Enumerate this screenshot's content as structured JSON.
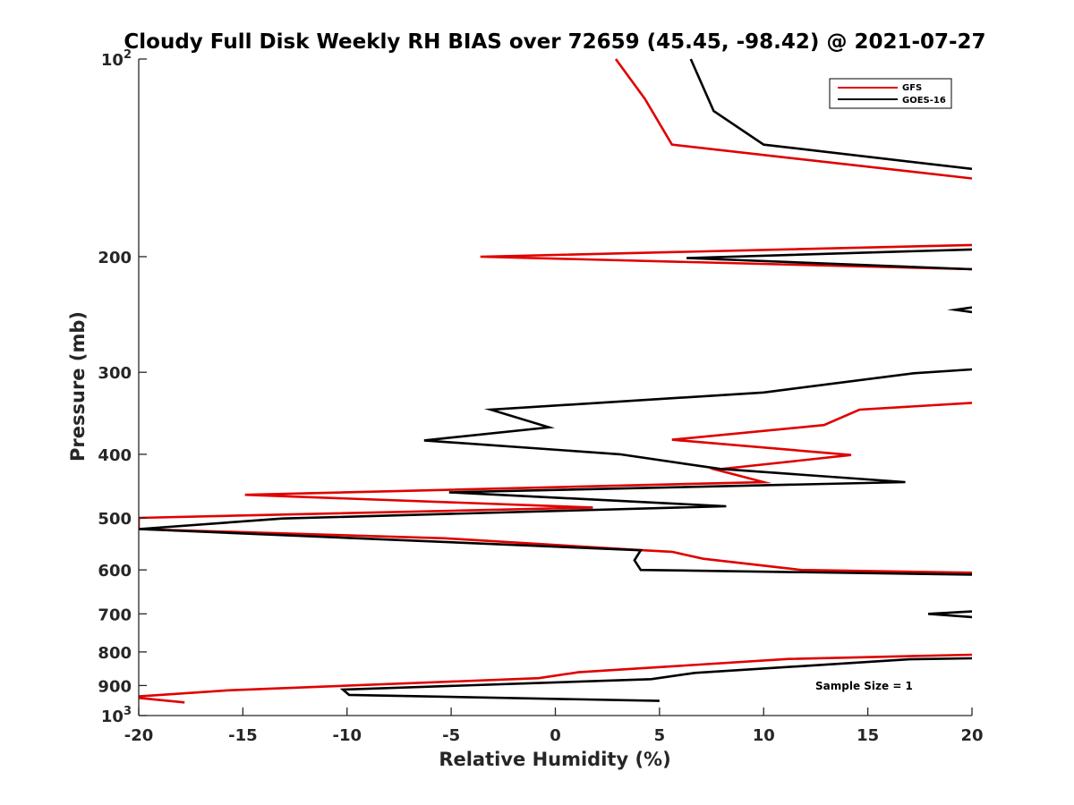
{
  "chart_data": {
    "type": "line",
    "title": "Cloudy Full Disk Weekly RH BIAS over 72659 (45.45, -98.42) @ 2021-07-27",
    "xlabel": "Relative Humidity (%)",
    "ylabel": "Pressure (mb)",
    "xlim": [
      -20,
      20
    ],
    "ylim": [
      100,
      1000
    ],
    "y_scale": "log",
    "y_reversed": true,
    "x_ticks": [
      "-20",
      "-15",
      "-10",
      "-5",
      "0",
      "5",
      "10",
      "15",
      "20"
    ],
    "y_ticks": [
      {
        "value": 100,
        "base": "10",
        "exp": "2"
      },
      {
        "value": 200,
        "label": "200"
      },
      {
        "value": 300,
        "label": "300"
      },
      {
        "value": 400,
        "label": "400"
      },
      {
        "value": 500,
        "label": "500"
      },
      {
        "value": 600,
        "label": "600"
      },
      {
        "value": 700,
        "label": "700"
      },
      {
        "value": 800,
        "label": "800"
      },
      {
        "value": 900,
        "label": "900"
      },
      {
        "value": 1000,
        "base": "10",
        "exp": "3"
      }
    ],
    "grid": false,
    "legend_position": "top-right",
    "series": [
      {
        "name": "GFS",
        "color": "#e00000",
        "segments": [
          [
            [
              2.9,
              100
            ],
            [
              4.3,
              115
            ],
            [
              5.6,
              135
            ],
            [
              20,
              152
            ]
          ],
          [
            [
              20,
              192
            ],
            [
              -3.6,
              200
            ],
            [
              20,
              209
            ]
          ],
          [
            [
              20,
              334
            ],
            [
              14.6,
              342
            ],
            [
              12.9,
              361
            ],
            [
              5.6,
              380
            ],
            [
              14.2,
              401
            ],
            [
              7.7,
              422
            ],
            [
              10,
              441
            ],
            [
              -14.9,
              461
            ],
            [
              1.8,
              482
            ],
            [
              -20,
              500
            ],
            [
              -20,
              520
            ],
            [
              -5.3,
              537
            ],
            [
              4.2,
              560
            ],
            [
              5.6,
              563
            ],
            [
              7.1,
              577
            ],
            [
              11.8,
              600
            ],
            [
              20,
              606
            ]
          ],
          [
            [
              20,
              808
            ],
            [
              11.2,
              820
            ],
            [
              1.1,
              859
            ],
            [
              -0.8,
              877
            ],
            [
              -15.6,
              915
            ],
            [
              -20,
              935
            ],
            [
              -20,
              940
            ],
            [
              -17.8,
              955
            ]
          ]
        ]
      },
      {
        "name": "GOES-16",
        "color": "#000000",
        "segments": [
          [
            [
              6.5,
              100
            ],
            [
              7.6,
              120
            ],
            [
              10,
              135
            ],
            [
              20,
              147
            ]
          ],
          [
            [
              20,
              195
            ],
            [
              6.3,
              201
            ],
            [
              20,
              209
            ]
          ],
          [
            [
              20,
              239
            ],
            [
              19.2,
              241
            ],
            [
              20,
              243
            ]
          ],
          [
            [
              20,
              297
            ],
            [
              17.2,
              301
            ],
            [
              10,
              322
            ],
            [
              -3.1,
              342
            ],
            [
              -0.3,
              364
            ],
            [
              -6.3,
              381
            ],
            [
              3.1,
              400
            ],
            [
              7.9,
              421
            ],
            [
              16.8,
              441
            ],
            [
              -5.1,
              457
            ],
            [
              8.2,
              480
            ],
            [
              -13.1,
              501
            ],
            [
              -20,
              520
            ],
            [
              4.1,
              560
            ],
            [
              3.8,
              580
            ],
            [
              4.1,
              600
            ],
            [
              20,
              610
            ]
          ],
          [
            [
              20,
              694
            ],
            [
              17.9,
              700
            ],
            [
              20,
              708
            ]
          ],
          [
            [
              20,
              818
            ],
            [
              17,
              821
            ],
            [
              6.7,
              861
            ],
            [
              4.6,
              880
            ],
            [
              -10.2,
              913
            ],
            [
              -9.9,
              930
            ],
            [
              5,
              950
            ]
          ]
        ]
      }
    ],
    "annotations": [
      "Sample Size = 1"
    ]
  }
}
